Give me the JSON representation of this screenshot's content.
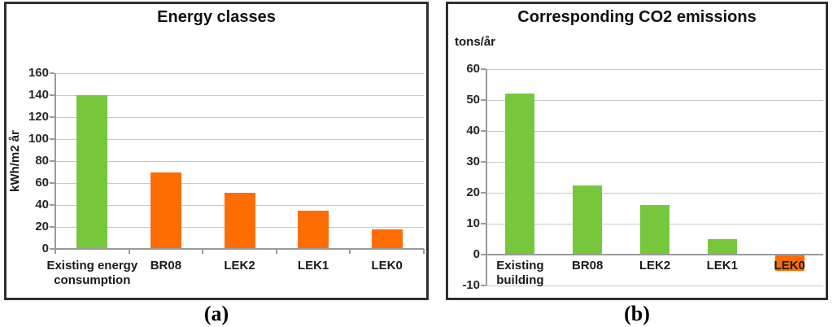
{
  "captions": {
    "a": "(a)",
    "b": "(b)"
  },
  "colors": {
    "green": "#76C73C",
    "orange": "#FD6D01",
    "grid": "#C9C9C9",
    "axis": "#9A9A9A",
    "panel_border": "#2F2F2F",
    "text": "#1A1A1A"
  },
  "chart_data": [
    {
      "type": "bar",
      "title": "Energy classes",
      "ylabel": "kWh/m2 år",
      "categories": [
        "Existing energy consumption",
        "BR08",
        "LEK2",
        "LEK1",
        "LEK0"
      ],
      "values": [
        140,
        70,
        51,
        35,
        18
      ],
      "bar_colors": [
        "green",
        "orange",
        "orange",
        "orange",
        "orange"
      ],
      "ylim": [
        0,
        160
      ],
      "ytick_step": 20,
      "grid": true,
      "legend": "none"
    },
    {
      "type": "bar",
      "title": "Corresponding CO2 emissions",
      "ylabel": "tons/år",
      "categories": [
        "Existing building",
        "BR08",
        "LEK2",
        "LEK1",
        "LEK0"
      ],
      "values": [
        52,
        22.5,
        16,
        5,
        -5
      ],
      "bar_colors": [
        "green",
        "green",
        "green",
        "green",
        "orange"
      ],
      "ylim": [
        -10,
        60
      ],
      "ytick_step": 10,
      "grid": true,
      "legend": "none"
    }
  ]
}
